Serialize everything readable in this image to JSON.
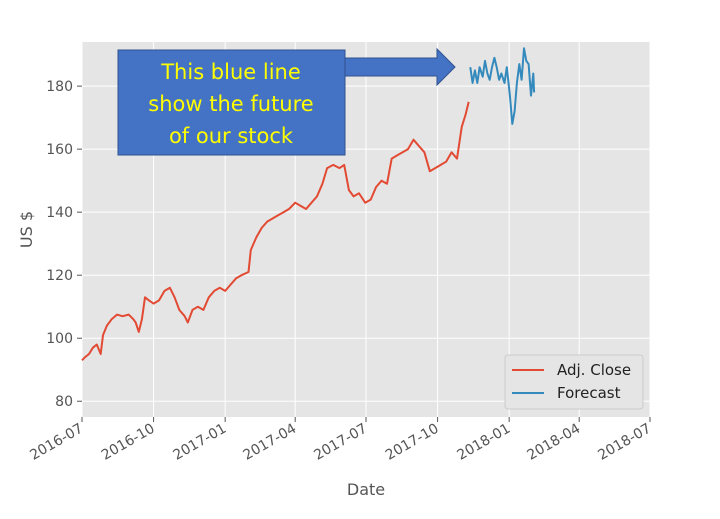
{
  "chart_data": {
    "type": "line",
    "title": "",
    "xlabel": "Date",
    "ylabel": "US $",
    "x_axis_type": "date",
    "xlim": [
      "2016-07-01",
      "2018-07-01"
    ],
    "ylim": [
      75,
      194
    ],
    "x_ticks": [
      "2016-07",
      "2016-10",
      "2017-01",
      "2017-04",
      "2017-07",
      "2017-10",
      "2018-01",
      "2018-04",
      "2018-07"
    ],
    "y_ticks": [
      80,
      100,
      120,
      140,
      160,
      180
    ],
    "grid": true,
    "legend_position": "lower-right",
    "colors": {
      "Adj. Close": "#e24a33",
      "Forecast": "#348abd",
      "background": "#e5e5e5",
      "grid": "#ffffff",
      "annotation_box": "#4472c4",
      "annotation_text": "#ffff00"
    },
    "series": [
      {
        "name": "Adj. Close",
        "color": "#e24a33",
        "points": [
          [
            "2016-07-01",
            93
          ],
          [
            "2016-07-05",
            94
          ],
          [
            "2016-07-10",
            95
          ],
          [
            "2016-07-15",
            97
          ],
          [
            "2016-07-20",
            98
          ],
          [
            "2016-07-25",
            95
          ],
          [
            "2016-07-28",
            101
          ],
          [
            "2016-08-02",
            104
          ],
          [
            "2016-08-08",
            106
          ],
          [
            "2016-08-15",
            107.5
          ],
          [
            "2016-08-22",
            107
          ],
          [
            "2016-08-30",
            107.5
          ],
          [
            "2016-09-05",
            106
          ],
          [
            "2016-09-08",
            105
          ],
          [
            "2016-09-12",
            102
          ],
          [
            "2016-09-16",
            106
          ],
          [
            "2016-09-20",
            113
          ],
          [
            "2016-09-25",
            112
          ],
          [
            "2016-10-01",
            111
          ],
          [
            "2016-10-08",
            112
          ],
          [
            "2016-10-15",
            115
          ],
          [
            "2016-10-22",
            116
          ],
          [
            "2016-10-28",
            113
          ],
          [
            "2016-11-03",
            109
          ],
          [
            "2016-11-10",
            107
          ],
          [
            "2016-11-14",
            105
          ],
          [
            "2016-11-20",
            109
          ],
          [
            "2016-11-27",
            110
          ],
          [
            "2016-12-04",
            109
          ],
          [
            "2016-12-11",
            113
          ],
          [
            "2016-12-18",
            115
          ],
          [
            "2016-12-25",
            116
          ],
          [
            "2017-01-01",
            115
          ],
          [
            "2017-01-08",
            117
          ],
          [
            "2017-01-15",
            119
          ],
          [
            "2017-01-22",
            120
          ],
          [
            "2017-01-31",
            121
          ],
          [
            "2017-02-03",
            128
          ],
          [
            "2017-02-10",
            132
          ],
          [
            "2017-02-17",
            135
          ],
          [
            "2017-02-24",
            137
          ],
          [
            "2017-03-03",
            138
          ],
          [
            "2017-03-10",
            139
          ],
          [
            "2017-03-17",
            140
          ],
          [
            "2017-03-24",
            141
          ],
          [
            "2017-04-01",
            143
          ],
          [
            "2017-04-08",
            142
          ],
          [
            "2017-04-15",
            141
          ],
          [
            "2017-04-22",
            143
          ],
          [
            "2017-04-29",
            145
          ],
          [
            "2017-05-06",
            149
          ],
          [
            "2017-05-12",
            154
          ],
          [
            "2017-05-20",
            155
          ],
          [
            "2017-05-28",
            154
          ],
          [
            "2017-06-03",
            155
          ],
          [
            "2017-06-09",
            147
          ],
          [
            "2017-06-15",
            145
          ],
          [
            "2017-06-22",
            146
          ],
          [
            "2017-06-30",
            143
          ],
          [
            "2017-07-07",
            144
          ],
          [
            "2017-07-14",
            148
          ],
          [
            "2017-07-21",
            150
          ],
          [
            "2017-07-28",
            149
          ],
          [
            "2017-08-03",
            157
          ],
          [
            "2017-08-10",
            158
          ],
          [
            "2017-08-17",
            159
          ],
          [
            "2017-08-24",
            160
          ],
          [
            "2017-08-31",
            163
          ],
          [
            "2017-09-07",
            161
          ],
          [
            "2017-09-14",
            159
          ],
          [
            "2017-09-21",
            153
          ],
          [
            "2017-09-28",
            154
          ],
          [
            "2017-10-05",
            155
          ],
          [
            "2017-10-12",
            156
          ],
          [
            "2017-10-19",
            159
          ],
          [
            "2017-10-26",
            157
          ],
          [
            "2017-11-01",
            167
          ],
          [
            "2017-11-06",
            171
          ],
          [
            "2017-11-10",
            175
          ]
        ]
      },
      {
        "name": "Forecast",
        "color": "#348abd",
        "points": [
          [
            "2017-11-12",
            186
          ],
          [
            "2017-11-15",
            181
          ],
          [
            "2017-11-18",
            185
          ],
          [
            "2017-11-21",
            181
          ],
          [
            "2017-11-24",
            186
          ],
          [
            "2017-11-28",
            183
          ],
          [
            "2017-12-01",
            188
          ],
          [
            "2017-12-04",
            184
          ],
          [
            "2017-12-07",
            182
          ],
          [
            "2017-12-10",
            186
          ],
          [
            "2017-12-13",
            189
          ],
          [
            "2017-12-16",
            186
          ],
          [
            "2017-12-19",
            182
          ],
          [
            "2017-12-22",
            184
          ],
          [
            "2017-12-26",
            181
          ],
          [
            "2017-12-29",
            186
          ],
          [
            "2018-01-02",
            177
          ],
          [
            "2018-01-05",
            168
          ],
          [
            "2018-01-08",
            172
          ],
          [
            "2018-01-11",
            181
          ],
          [
            "2018-01-14",
            187
          ],
          [
            "2018-01-17",
            182
          ],
          [
            "2018-01-20",
            192
          ],
          [
            "2018-01-23",
            188
          ],
          [
            "2018-01-26",
            187
          ],
          [
            "2018-01-29",
            177
          ],
          [
            "2018-02-01",
            184
          ],
          [
            "2018-02-02",
            178
          ]
        ]
      }
    ],
    "annotation": {
      "lines": [
        "This blue line",
        "show the future",
        "of our stock"
      ]
    }
  }
}
